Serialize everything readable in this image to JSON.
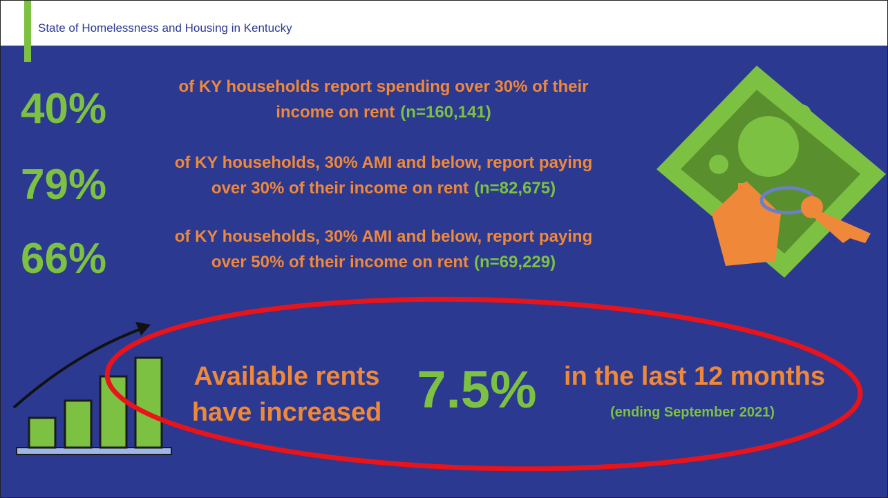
{
  "header": {
    "title": "State of Homelessness and Housing in Kentucky"
  },
  "stats": [
    {
      "number": "40%",
      "line1": "of KY households report spending over 30% of their",
      "line2": "income on rent",
      "n": "(n=160,141)"
    },
    {
      "number": "79%",
      "line1": "of KY households, 30% AMI and below, report paying",
      "line2": "over 30% of their income on rent",
      "n": "(n=82,675)"
    },
    {
      "number": "66%",
      "line1": "of KY households, 30% AMI and below, report paying",
      "line2": "over 50% of their income on rent",
      "n": "(n=69,229)"
    }
  ],
  "highlight": {
    "line1": "Available rents",
    "line2": "have increased",
    "number": "7.5%",
    "period": "in the last 12 months",
    "note": "(ending September 2021)"
  }
}
